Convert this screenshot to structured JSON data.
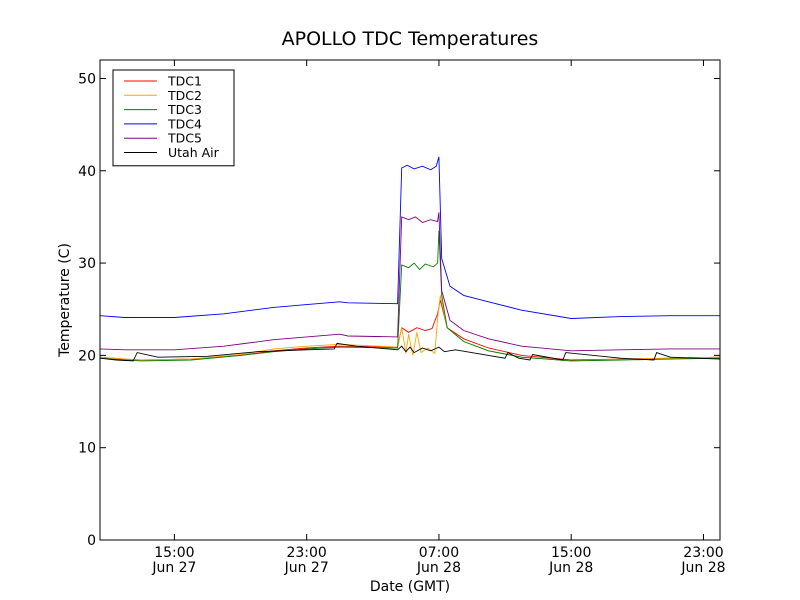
{
  "chart_data": {
    "type": "line",
    "title": "APOLLO TDC Temperatures",
    "xlabel": "Date (GMT)",
    "ylabel": "Temperature (C)",
    "y_ticks": [
      "0",
      "10",
      "20",
      "30",
      "40",
      "50"
    ],
    "ylim": [
      0,
      52
    ],
    "xlim": [
      "Jun 27 10:30",
      "Jun 29 00:00"
    ],
    "x_ticks": [
      {
        "time": "15:00",
        "date": "Jun 27",
        "at": "Jun 27 15:00"
      },
      {
        "time": "23:00",
        "date": "Jun 27",
        "at": "Jun 27 23:00"
      },
      {
        "time": "07:00",
        "date": "Jun 28",
        "at": "Jun 28 07:00"
      },
      {
        "time": "15:00",
        "date": "Jun 28",
        "at": "Jun 28 15:00"
      },
      {
        "time": "23:00",
        "date": "Jun 28",
        "at": "Jun 28 23:00"
      }
    ],
    "grid": false,
    "legend_position": "top-left",
    "series": [
      {
        "name": "TDC1",
        "color": "#ff0000",
        "points": [
          [
            "Jun 27 10:30",
            19.8
          ],
          [
            "Jun 27 12:00",
            19.6
          ],
          [
            "Jun 27 13:00",
            19.5
          ],
          [
            "Jun 27 16:00",
            19.6
          ],
          [
            "Jun 27 19:00",
            20.0
          ],
          [
            "Jun 27 21:00",
            20.5
          ],
          [
            "Jun 27 23:00",
            20.8
          ],
          [
            "Jun 28 01:00",
            21.0
          ],
          [
            "Jun 28 04:30",
            20.9
          ],
          [
            "Jun 28 04:45",
            23.0
          ],
          [
            "Jun 28 05:10",
            22.5
          ],
          [
            "Jun 28 05:40",
            23.0
          ],
          [
            "Jun 28 06:10",
            22.7
          ],
          [
            "Jun 28 06:35",
            22.9
          ],
          [
            "Jun 28 06:55",
            24.5
          ],
          [
            "Jun 28 07:05",
            26.0
          ],
          [
            "Jun 28 07:30",
            23.0
          ],
          [
            "Jun 28 08:30",
            21.8
          ],
          [
            "Jun 28 10:00",
            20.8
          ],
          [
            "Jun 28 12:00",
            20.0
          ],
          [
            "Jun 28 15:00",
            19.5
          ],
          [
            "Jun 28 18:00",
            19.6
          ],
          [
            "Jun 28 21:00",
            19.7
          ],
          [
            "Jun 29 00:00",
            19.8
          ]
        ]
      },
      {
        "name": "TDC2",
        "color": "#ffa500",
        "points": [
          [
            "Jun 27 10:30",
            19.8
          ],
          [
            "Jun 27 12:00",
            19.6
          ],
          [
            "Jun 27 13:00",
            19.5
          ],
          [
            "Jun 27 16:00",
            19.6
          ],
          [
            "Jun 27 19:00",
            20.1
          ],
          [
            "Jun 27 21:00",
            20.7
          ],
          [
            "Jun 27 23:00",
            21.0
          ],
          [
            "Jun 28 01:00",
            21.2
          ],
          [
            "Jun 28 04:30",
            20.9
          ],
          [
            "Jun 28 04:45",
            23.0
          ],
          [
            "Jun 28 05:00",
            20.2
          ],
          [
            "Jun 28 05:10",
            22.3
          ],
          [
            "Jun 28 05:25",
            20.0
          ],
          [
            "Jun 28 05:40",
            22.5
          ],
          [
            "Jun 28 05:55",
            20.3
          ],
          [
            "Jun 28 06:20",
            20.8
          ],
          [
            "Jun 28 06:45",
            20.2
          ],
          [
            "Jun 28 06:55",
            24.0
          ],
          [
            "Jun 28 07:05",
            26.5
          ],
          [
            "Jun 28 07:30",
            23.0
          ],
          [
            "Jun 28 08:30",
            21.5
          ],
          [
            "Jun 28 10:00",
            20.5
          ],
          [
            "Jun 28 12:00",
            19.8
          ],
          [
            "Jun 28 15:00",
            19.4
          ],
          [
            "Jun 28 18:00",
            19.6
          ],
          [
            "Jun 28 21:00",
            19.7
          ],
          [
            "Jun 29 00:00",
            19.8
          ]
        ]
      },
      {
        "name": "TDC3",
        "color": "#008000",
        "points": [
          [
            "Jun 27 10:30",
            19.7
          ],
          [
            "Jun 27 12:00",
            19.5
          ],
          [
            "Jun 27 13:00",
            19.4
          ],
          [
            "Jun 27 16:00",
            19.5
          ],
          [
            "Jun 27 19:00",
            20.0
          ],
          [
            "Jun 27 21:00",
            20.4
          ],
          [
            "Jun 27 23:00",
            20.7
          ],
          [
            "Jun 28 01:00",
            20.9
          ],
          [
            "Jun 28 04:30",
            20.8
          ],
          [
            "Jun 28 04:45",
            29.8
          ],
          [
            "Jun 28 05:10",
            29.5
          ],
          [
            "Jun 28 05:30",
            30.0
          ],
          [
            "Jun 28 05:50",
            29.3
          ],
          [
            "Jun 28 06:10",
            29.9
          ],
          [
            "Jun 28 06:40",
            29.6
          ],
          [
            "Jun 28 06:55",
            30.0
          ],
          [
            "Jun 28 07:00",
            33.5
          ],
          [
            "Jun 28 07:10",
            26.5
          ],
          [
            "Jun 28 07:30",
            23.0
          ],
          [
            "Jun 28 08:30",
            21.5
          ],
          [
            "Jun 28 10:00",
            20.5
          ],
          [
            "Jun 28 12:00",
            19.8
          ],
          [
            "Jun 28 15:00",
            19.4
          ],
          [
            "Jun 28 18:00",
            19.5
          ],
          [
            "Jun 28 21:00",
            19.6
          ],
          [
            "Jun 29 00:00",
            19.7
          ]
        ]
      },
      {
        "name": "TDC4",
        "color": "#0000ff",
        "points": [
          [
            "Jun 27 10:30",
            24.3
          ],
          [
            "Jun 27 12:00",
            24.1
          ],
          [
            "Jun 27 15:00",
            24.1
          ],
          [
            "Jun 27 18:00",
            24.5
          ],
          [
            "Jun 27 21:00",
            25.2
          ],
          [
            "Jun 27 23:00",
            25.5
          ],
          [
            "Jun 28 01:00",
            25.8
          ],
          [
            "Jun 28 01:30",
            25.7
          ],
          [
            "Jun 28 04:30",
            25.6
          ],
          [
            "Jun 28 04:45",
            40.3
          ],
          [
            "Jun 28 05:05",
            40.6
          ],
          [
            "Jun 28 05:30",
            40.2
          ],
          [
            "Jun 28 06:00",
            40.5
          ],
          [
            "Jun 28 06:30",
            40.1
          ],
          [
            "Jun 28 06:50",
            40.5
          ],
          [
            "Jun 28 07:00",
            41.5
          ],
          [
            "Jun 28 07:10",
            30.5
          ],
          [
            "Jun 28 07:40",
            27.5
          ],
          [
            "Jun 28 08:30",
            26.5
          ],
          [
            "Jun 28 10:00",
            25.8
          ],
          [
            "Jun 28 12:00",
            24.9
          ],
          [
            "Jun 28 15:00",
            24.0
          ],
          [
            "Jun 28 18:00",
            24.2
          ],
          [
            "Jun 28 21:00",
            24.3
          ],
          [
            "Jun 29 00:00",
            24.3
          ]
        ]
      },
      {
        "name": "TDC5",
        "color": "#800080",
        "points": [
          [
            "Jun 27 10:30",
            20.7
          ],
          [
            "Jun 27 12:00",
            20.6
          ],
          [
            "Jun 27 15:00",
            20.6
          ],
          [
            "Jun 27 18:00",
            21.0
          ],
          [
            "Jun 27 21:00",
            21.7
          ],
          [
            "Jun 27 23:00",
            22.0
          ],
          [
            "Jun 28 01:00",
            22.3
          ],
          [
            "Jun 28 01:30",
            22.1
          ],
          [
            "Jun 28 04:30",
            22.0
          ],
          [
            "Jun 28 04:45",
            35.0
          ],
          [
            "Jun 28 05:10",
            34.7
          ],
          [
            "Jun 28 05:35",
            35.0
          ],
          [
            "Jun 28 06:00",
            34.4
          ],
          [
            "Jun 28 06:30",
            34.7
          ],
          [
            "Jun 28 06:55",
            34.5
          ],
          [
            "Jun 28 07:00",
            35.5
          ],
          [
            "Jun 28 07:10",
            27.0
          ],
          [
            "Jun 28 07:40",
            23.8
          ],
          [
            "Jun 28 08:30",
            22.7
          ],
          [
            "Jun 28 10:00",
            21.8
          ],
          [
            "Jun 28 12:00",
            21.0
          ],
          [
            "Jun 28 15:00",
            20.5
          ],
          [
            "Jun 28 18:00",
            20.6
          ],
          [
            "Jun 28 21:00",
            20.7
          ],
          [
            "Jun 29 00:00",
            20.7
          ]
        ]
      },
      {
        "name": "Utah Air",
        "color": "#000000",
        "points": [
          [
            "Jun 27 10:30",
            19.7
          ],
          [
            "Jun 27 11:30",
            19.5
          ],
          [
            "Jun 27 12:30",
            19.4
          ],
          [
            "Jun 27 12:45",
            20.3
          ],
          [
            "Jun 27 14:00",
            19.8
          ],
          [
            "Jun 27 17:00",
            19.9
          ],
          [
            "Jun 27 20:00",
            20.4
          ],
          [
            "Jun 27 23:00",
            20.6
          ],
          [
            "Jun 28 00:40",
            20.7
          ],
          [
            "Jun 28 00:50",
            21.3
          ],
          [
            "Jun 28 02:00",
            21.0
          ],
          [
            "Jun 28 04:30",
            20.6
          ],
          [
            "Jun 28 04:45",
            21.0
          ],
          [
            "Jun 28 05:00",
            20.4
          ],
          [
            "Jun 28 05:15",
            20.9
          ],
          [
            "Jun 28 05:30",
            20.3
          ],
          [
            "Jun 28 06:00",
            20.8
          ],
          [
            "Jun 28 06:30",
            20.5
          ],
          [
            "Jun 28 07:00",
            20.9
          ],
          [
            "Jun 28 07:20",
            20.4
          ],
          [
            "Jun 28 08:00",
            20.6
          ],
          [
            "Jun 28 10:00",
            20.0
          ],
          [
            "Jun 28 11:00",
            19.7
          ],
          [
            "Jun 28 11:10",
            20.3
          ],
          [
            "Jun 28 11:50",
            19.7
          ],
          [
            "Jun 28 12:30",
            19.5
          ],
          [
            "Jun 28 12:40",
            20.1
          ],
          [
            "Jun 28 14:30",
            19.5
          ],
          [
            "Jun 28 14:40",
            20.3
          ],
          [
            "Jun 28 18:00",
            19.7
          ],
          [
            "Jun 28 20:00",
            19.5
          ],
          [
            "Jun 28 20:10",
            20.3
          ],
          [
            "Jun 28 21:00",
            19.8
          ],
          [
            "Jun 29 00:00",
            19.6
          ]
        ]
      }
    ]
  }
}
